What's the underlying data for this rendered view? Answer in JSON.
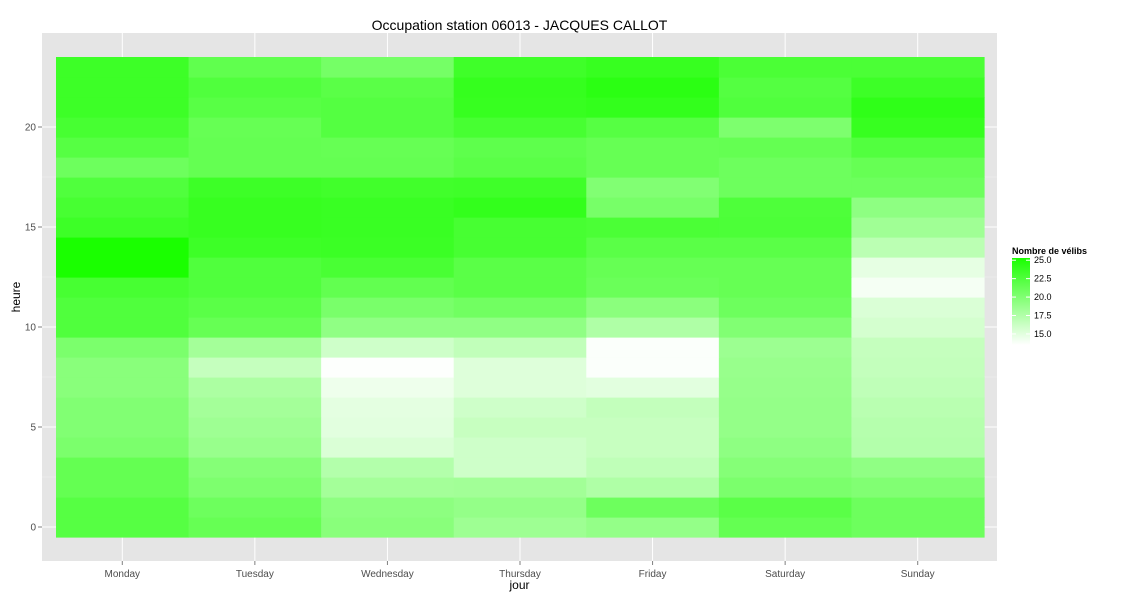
{
  "chart_data": {
    "type": "heatmap",
    "title": "Occupation station 06013 - JACQUES CALLOT",
    "xlabel": "jour",
    "ylabel": "heure",
    "x_categories": [
      "Monday",
      "Tuesday",
      "Wednesday",
      "Thursday",
      "Friday",
      "Saturday",
      "Sunday"
    ],
    "y_hours": [
      0,
      1,
      2,
      3,
      4,
      5,
      6,
      7,
      8,
      9,
      10,
      11,
      12,
      13,
      14,
      15,
      16,
      17,
      18,
      19,
      20,
      21,
      22,
      23
    ],
    "y_range": [
      -0.5,
      23.5
    ],
    "y_ticks": [
      0,
      5,
      10,
      15,
      20
    ],
    "y_tick_labels": [
      "0",
      "5",
      "10",
      "15",
      "20"
    ],
    "grid": true,
    "color_scale": {
      "low_color": "#ffffff",
      "high_color": "#1aff00",
      "min": 13.5,
      "max": 25.3
    },
    "legend": {
      "title": "Nombre de vélibs",
      "placement": "right",
      "breaks": [
        25.0,
        22.5,
        20.0,
        17.5,
        15.0
      ],
      "labels": [
        "25.0",
        "22.5",
        "20.0",
        "17.5",
        "15.0"
      ]
    },
    "values": [
      [
        22.2,
        21.4,
        19.6,
        18.5,
        19.0,
        21.5,
        21.0
      ],
      [
        22.2,
        21.0,
        19.4,
        19.0,
        21.0,
        22.0,
        21.0
      ],
      [
        21.5,
        20.2,
        18.2,
        18.3,
        17.6,
        20.3,
        20.0
      ],
      [
        21.5,
        19.8,
        17.4,
        16.0,
        16.8,
        19.8,
        19.2
      ],
      [
        20.3,
        18.8,
        15.4,
        16.0,
        16.4,
        19.3,
        17.4
      ],
      [
        20.0,
        18.5,
        15.0,
        16.4,
        16.4,
        19.0,
        17.3
      ],
      [
        20.0,
        18.2,
        14.9,
        16.0,
        16.6,
        19.0,
        17.1
      ],
      [
        19.6,
        17.8,
        14.4,
        15.2,
        15.0,
        18.9,
        16.8
      ],
      [
        19.6,
        16.5,
        13.6,
        15.2,
        13.7,
        18.8,
        16.6
      ],
      [
        20.3,
        18.2,
        16.0,
        16.7,
        13.7,
        18.6,
        16.5
      ],
      [
        22.5,
        21.4,
        19.2,
        19.2,
        17.6,
        20.0,
        15.7
      ],
      [
        22.5,
        22.0,
        20.4,
        20.8,
        19.5,
        21.0,
        15.4
      ],
      [
        23.0,
        22.5,
        21.6,
        22.0,
        21.2,
        21.4,
        14.0
      ],
      [
        25.3,
        22.5,
        22.9,
        22.0,
        21.4,
        21.4,
        14.8
      ],
      [
        25.3,
        23.5,
        23.6,
        23.0,
        22.0,
        22.0,
        17.0
      ],
      [
        23.5,
        23.8,
        23.7,
        23.0,
        22.8,
        22.7,
        18.4
      ],
      [
        23.0,
        23.8,
        23.7,
        24.0,
        20.5,
        22.6,
        19.3
      ],
      [
        22.5,
        23.5,
        23.3,
        23.4,
        20.0,
        21.0,
        21.0
      ],
      [
        21.0,
        21.5,
        21.5,
        22.0,
        21.4,
        21.0,
        21.4
      ],
      [
        22.2,
        21.5,
        21.4,
        21.8,
        21.4,
        21.5,
        22.4
      ],
      [
        23.0,
        21.4,
        22.3,
        23.0,
        22.2,
        20.2,
        23.8
      ],
      [
        23.5,
        22.1,
        22.3,
        23.8,
        24.0,
        22.5,
        24.2
      ],
      [
        23.5,
        22.5,
        22.0,
        23.9,
        24.4,
        22.3,
        23.5
      ],
      [
        23.5,
        21.7,
        20.6,
        23.4,
        23.8,
        22.8,
        22.8
      ]
    ]
  }
}
